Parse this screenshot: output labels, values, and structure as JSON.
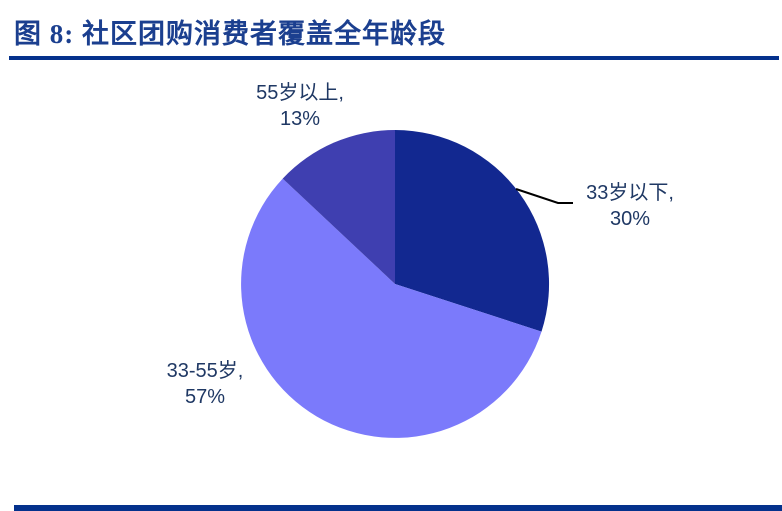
{
  "figure": {
    "title": "图 8: 社区团购消费者覆盖全年龄段"
  },
  "chart_data": {
    "type": "pie",
    "title": "社区团购消费者覆盖全年龄段",
    "unit": "%",
    "start_angle_deg": 0,
    "direction": "clockwise",
    "legend": "none",
    "slices": [
      {
        "label": "33岁以下",
        "value": 30,
        "label_line1": "33岁以下,",
        "label_line2": "30%",
        "color": "#122890"
      },
      {
        "label": "33-55岁",
        "value": 57,
        "label_line1": "33-55岁,",
        "label_line2": "57%",
        "color": "#7b7afb"
      },
      {
        "label": "55岁以上",
        "value": 13,
        "label_line1": "55岁以上,",
        "label_line2": "13%",
        "color": "#3f3fb0"
      }
    ]
  },
  "colors": {
    "title_text": "#1b3f8f",
    "rule": "#04318c",
    "label_text": "#1f3864",
    "leader_line": "#000000"
  }
}
